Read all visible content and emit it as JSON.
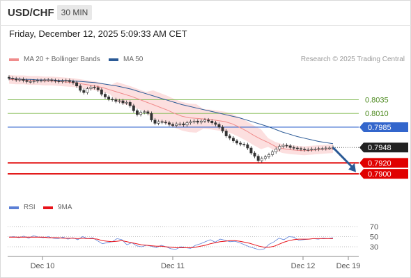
{
  "header": {
    "symbol": "USD/CHF",
    "timeframe": "30 MIN",
    "datetime": "Friday, December 12, 2025 5:09:33 AM CET"
  },
  "legend": {
    "items": [
      {
        "label": "MA 20 + Bollinger Bands",
        "color": "#f08c8c"
      },
      {
        "label": "MA 50",
        "color": "#2b5a96"
      }
    ],
    "rsi_items": [
      {
        "label": "RSI",
        "color": "#5b7fd6"
      },
      {
        "label": "9MA",
        "color": "#e8121a"
      }
    ]
  },
  "credit": "Research © 2025 Trading Central",
  "chart_data": [
    {
      "type": "candlestick",
      "title": "USD/CHF",
      "x_tick_labels": [
        "Dec 10",
        "Dec 11",
        "Dec 12",
        "Dec 19"
      ],
      "ylim": [
        0.7885,
        0.8095
      ],
      "last_price": 0.7948,
      "levels": [
        {
          "value": 0.8035,
          "label": "0.8035",
          "kind": "resistance",
          "color": "#7ab648"
        },
        {
          "value": 0.801,
          "label": "0.8010",
          "kind": "resistance",
          "color": "#7ab648"
        },
        {
          "value": 0.7985,
          "label": "0.7985",
          "kind": "pivot",
          "color": "#3366cc"
        },
        {
          "value": 0.7948,
          "label": "0.7948",
          "kind": "last",
          "color": "#222222"
        },
        {
          "value": 0.792,
          "label": "0.7920",
          "kind": "target",
          "color": "#e00000"
        },
        {
          "value": 0.79,
          "label": "0.7900",
          "kind": "target",
          "color": "#e00000"
        }
      ],
      "close_series": [
        0.8074,
        0.8073,
        0.8071,
        0.8072,
        0.807,
        0.8068,
        0.8068,
        0.8069,
        0.807,
        0.807,
        0.8071,
        0.8071,
        0.807,
        0.8069,
        0.8068,
        0.8069,
        0.807,
        0.8068,
        0.8066,
        0.806,
        0.8052,
        0.8048,
        0.8055,
        0.8058,
        0.8057,
        0.8053,
        0.8045,
        0.804,
        0.8036,
        0.8035,
        0.8032,
        0.8033,
        0.8029,
        0.803,
        0.8024,
        0.8015,
        0.8008,
        0.8012,
        0.8013,
        0.801,
        0.7998,
        0.7992,
        0.7995,
        0.7994,
        0.7993,
        0.799,
        0.7988,
        0.7991,
        0.7991,
        0.7989,
        0.7993,
        0.7995,
        0.7996,
        0.7994,
        0.7996,
        0.7998,
        0.7996,
        0.7993,
        0.799,
        0.7985,
        0.7978,
        0.7969,
        0.7965,
        0.796,
        0.7956,
        0.7954,
        0.7953,
        0.7947,
        0.7938,
        0.7932,
        0.7924,
        0.7928,
        0.7931,
        0.7935,
        0.794,
        0.7945,
        0.795,
        0.7952,
        0.7951,
        0.7948,
        0.7947,
        0.7946,
        0.7945,
        0.7944,
        0.7944,
        0.7945,
        0.7945,
        0.7946,
        0.7946,
        0.7947,
        0.7947,
        0.7948
      ],
      "ma20_series": [
        0.8072,
        0.8071,
        0.8071,
        0.807,
        0.807,
        0.8069,
        0.8069,
        0.8068,
        0.8067,
        0.8066,
        0.8064,
        0.8062,
        0.806,
        0.8057,
        0.8053,
        0.8049,
        0.8045,
        0.8041,
        0.8036,
        0.8031,
        0.8026,
        0.8021,
        0.8016,
        0.801,
        0.8005,
        0.8002,
        0.8001,
        0.8,
        0.7999,
        0.7997,
        0.7995,
        0.7991,
        0.7985,
        0.7978,
        0.797,
        0.7963,
        0.7957,
        0.795,
        0.7946,
        0.7944,
        0.7943,
        0.7942,
        0.7943,
        0.7944,
        0.7945,
        0.7946
      ],
      "ma50_series": [
        0.8073,
        0.8073,
        0.8072,
        0.8072,
        0.8071,
        0.8071,
        0.8071,
        0.807,
        0.807,
        0.8069,
        0.8068,
        0.8067,
        0.8066,
        0.8064,
        0.8062,
        0.806,
        0.8057,
        0.8054,
        0.805,
        0.8046,
        0.8042,
        0.8038,
        0.8034,
        0.803,
        0.8026,
        0.8023,
        0.802,
        0.8017,
        0.8014,
        0.8011,
        0.8008,
        0.8005,
        0.8002,
        0.7998,
        0.7994,
        0.799,
        0.7986,
        0.7981,
        0.7976,
        0.7972,
        0.7968,
        0.7965,
        0.7962,
        0.7959,
        0.7957,
        0.7955
      ]
    },
    {
      "type": "line",
      "title": "RSI",
      "y_tick_labels": [
        "70",
        "50",
        "30"
      ],
      "ylim": [
        15,
        85
      ],
      "series": [
        {
          "name": "RSI",
          "values": [
            49,
            50,
            48,
            51,
            47,
            52,
            49,
            48,
            50,
            47,
            46,
            49,
            45,
            48,
            44,
            50,
            46,
            48,
            42,
            36,
            38,
            40,
            46,
            44,
            34,
            38,
            32,
            30,
            33,
            31,
            28,
            33,
            30,
            26,
            25,
            30,
            28,
            27,
            33,
            36,
            40,
            44,
            39,
            45,
            43,
            40,
            41,
            38,
            34,
            30,
            27,
            24,
            26,
            35,
            40,
            47,
            44,
            50,
            49,
            43,
            44,
            45,
            46,
            45,
            47,
            46,
            48
          ]
        },
        {
          "name": "9MA",
          "values": [
            49,
            49,
            49,
            49,
            49,
            49,
            49,
            49,
            48,
            48,
            48,
            47,
            47,
            47,
            46,
            47,
            46,
            46,
            45,
            42,
            41,
            40,
            41,
            42,
            40,
            38,
            36,
            34,
            33,
            32,
            31,
            31,
            30,
            29,
            28,
            28,
            28,
            28,
            29,
            31,
            33,
            36,
            38,
            40,
            41,
            42,
            42,
            41,
            39,
            37,
            34,
            31,
            29,
            29,
            31,
            35,
            39,
            42,
            44,
            45,
            45,
            45,
            46,
            46,
            46,
            46,
            46
          ]
        }
      ]
    }
  ]
}
